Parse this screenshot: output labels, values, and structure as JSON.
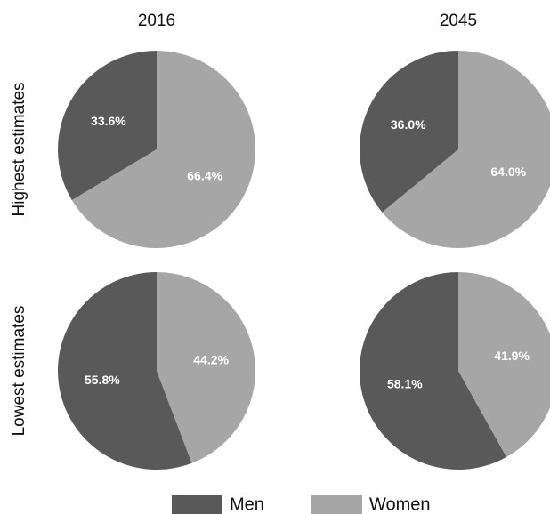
{
  "columns": [
    "2016",
    "2045"
  ],
  "rows": [
    "Highest estimates",
    "Lowest estimates"
  ],
  "legend": [
    {
      "name": "Men",
      "color": "#595959"
    },
    {
      "name": "Women",
      "color": "#a6a6a6"
    }
  ],
  "chart_data": [
    {
      "type": "pie",
      "values": [
        33.6,
        66.4
      ],
      "value_labels": [
        "33.6%",
        "66.4%"
      ]
    },
    {
      "type": "pie",
      "values": [
        36.0,
        64.0
      ],
      "value_labels": [
        "36.0%",
        "64.0%"
      ]
    },
    {
      "type": "pie",
      "values": [
        55.8,
        44.2
      ],
      "value_labels": [
        "55.8%",
        "44.2%"
      ]
    },
    {
      "type": "pie",
      "values": [
        58.1,
        41.9
      ],
      "value_labels": [
        "58.1%",
        "41.9%"
      ]
    }
  ]
}
